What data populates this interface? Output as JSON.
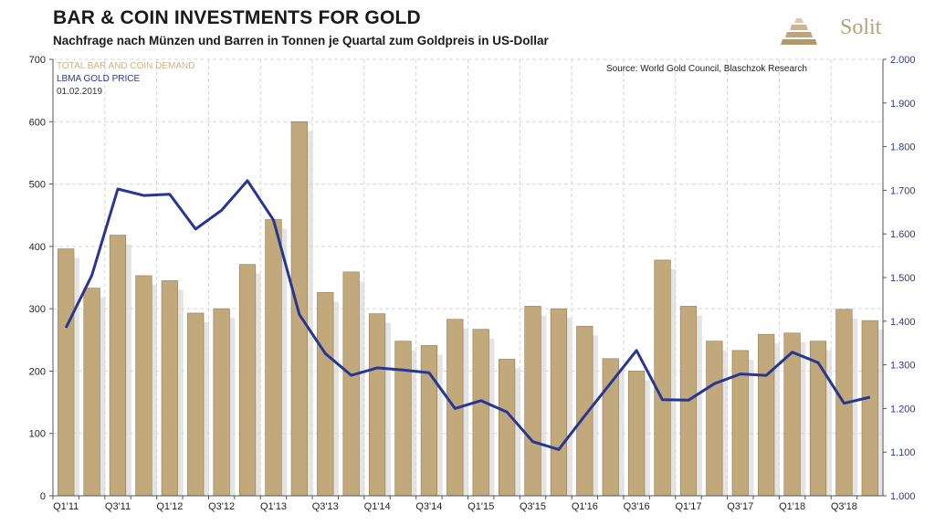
{
  "title": "BAR & COIN INVESTMENTS FOR GOLD",
  "subtitle": "Nachfrage nach Münzen und Barren in Tonnen je Quartal zum Goldpreis in US-Dollar",
  "brand": "Solit",
  "source": "Source: World Gold Council, Blaschzok Research",
  "legend": {
    "bars": "TOTAL BAR AND COIN DEMAND",
    "line": "LBMA GOLD PRICE",
    "date": "01.02.2019"
  },
  "colors": {
    "bar": "#c2a97b",
    "bar_shadow": "#d9d9d9",
    "line": "#283592",
    "grid": "#d5d5d5",
    "right_axis": "#2b3990",
    "brand": "#b5a27d"
  },
  "chart_data": {
    "type": "bar",
    "categories": [
      "Q1'11",
      "Q2'11",
      "Q3'11",
      "Q4'11",
      "Q1'12",
      "Q2'12",
      "Q3'12",
      "Q4'12",
      "Q1'13",
      "Q2'13",
      "Q3'13",
      "Q4'13",
      "Q1'14",
      "Q2'14",
      "Q3'14",
      "Q4'14",
      "Q1'15",
      "Q2'15",
      "Q3'15",
      "Q4'15",
      "Q1'16",
      "Q2'16",
      "Q3'16",
      "Q4'16",
      "Q1'17",
      "Q2'17",
      "Q3'17",
      "Q4'17",
      "Q1'18",
      "Q2'18",
      "Q3'18",
      "Q4'18"
    ],
    "x_tick_labels": [
      "Q1'11",
      "Q3'11",
      "Q1'12",
      "Q3'12",
      "Q1'13",
      "Q3'13",
      "Q1'14",
      "Q3'14",
      "Q1'15",
      "Q3'15",
      "Q1'16",
      "Q3'16",
      "Q1'17",
      "Q3'17",
      "Q1'18",
      "Q3'18"
    ],
    "series": [
      {
        "name": "TOTAL BAR AND COIN DEMAND",
        "type": "bar",
        "axis": "left",
        "values": [
          396,
          333,
          418,
          353,
          345,
          293,
          300,
          371,
          443,
          600,
          326,
          359,
          292,
          248,
          241,
          283,
          267,
          219,
          304,
          300,
          272,
          220,
          200,
          378,
          304,
          248,
          233,
          259,
          261,
          248,
          299,
          281
        ]
      },
      {
        "name": "LBMA GOLD PRICE",
        "type": "line",
        "axis": "right",
        "values": [
          1385,
          1505,
          1703,
          1688,
          1691,
          1611,
          1654,
          1722,
          1632,
          1415,
          1326,
          1276,
          1293,
          1288,
          1282,
          1200,
          1218,
          1192,
          1124,
          1106,
          1183,
          1258,
          1333,
          1220,
          1219,
          1257,
          1279,
          1276,
          1329,
          1305,
          1212,
          1226
        ]
      }
    ],
    "y_left": {
      "min": 0,
      "max": 700,
      "ticks": [
        0,
        100,
        200,
        300,
        400,
        500,
        600,
        700
      ],
      "tick_labels": [
        "0",
        "100",
        "200",
        "300",
        "400",
        "500",
        "600",
        "700"
      ]
    },
    "y_right": {
      "min": 1000,
      "max": 2000,
      "ticks": [
        1000,
        1100,
        1200,
        1300,
        1400,
        1500,
        1600,
        1700,
        1800,
        1900,
        2000
      ],
      "tick_labels": [
        "1.000",
        "1.100",
        "1.200",
        "1.300",
        "1.400",
        "1.500",
        "1.600",
        "1.700",
        "1.800",
        "1.900",
        "2.000"
      ]
    },
    "grid": true,
    "legend_position": "top-left"
  }
}
